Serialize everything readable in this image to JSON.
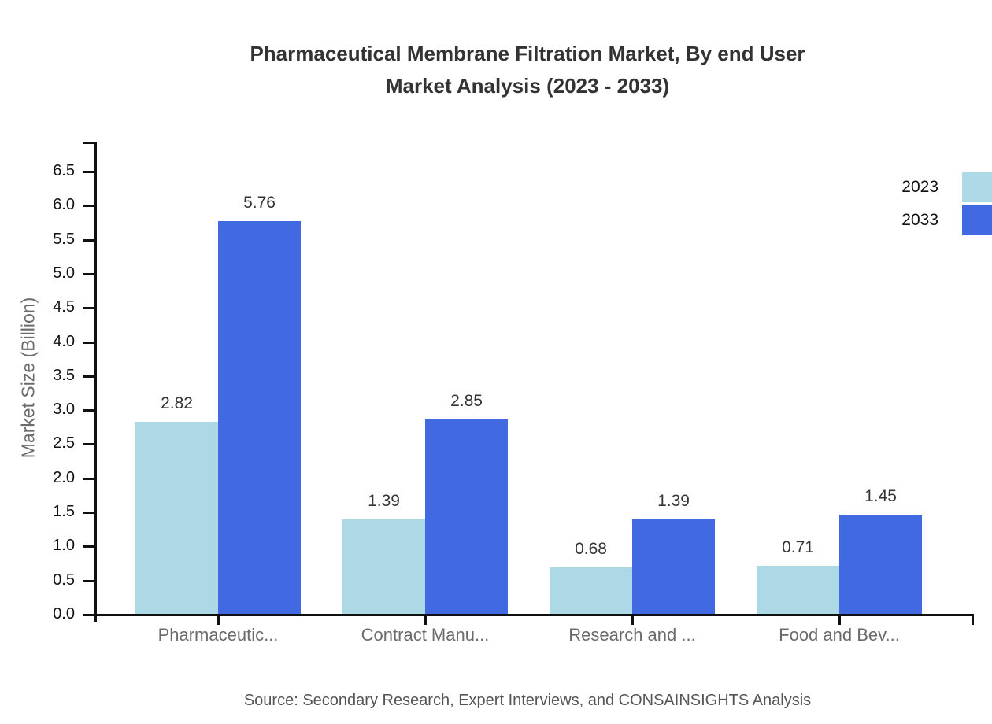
{
  "title": {
    "line1": "Pharmaceutical Membrane Filtration Market, By end User",
    "line2": "Market Analysis (2023 - 2033)"
  },
  "source_note": "Source: Secondary Research, Expert Interviews, and CONSAINSIGHTS Analysis",
  "colors": {
    "series_2023": "#ADD8E6",
    "series_2033": "#4169E1",
    "axis": "#111111",
    "title_text": "#333333",
    "category_text": "#6b6b6b",
    "value_label_text": "#333333",
    "source_text": "#555555"
  },
  "chart_data": {
    "type": "bar",
    "title": "Pharmaceutical Membrane Filtration Market, By end User Market Analysis (2023 - 2033)",
    "xlabel": "",
    "ylabel": "Market Size (Billion)",
    "categories": [
      "Pharmaceutic...",
      "Contract Manu...",
      "Research and ...",
      "Food and Bev..."
    ],
    "series": [
      {
        "name": "2023",
        "color": "#ADD8E6",
        "values": [
          2.82,
          1.39,
          0.68,
          0.71
        ]
      },
      {
        "name": "2033",
        "color": "#4169E1",
        "values": [
          5.76,
          2.85,
          1.39,
          1.45
        ]
      }
    ],
    "ylim": [
      0,
      6.5
    ],
    "yticks": [
      0.0,
      0.5,
      1.0,
      1.5,
      2.0,
      2.5,
      3.0,
      3.5,
      4.0,
      4.5,
      5.0,
      5.5,
      6.0,
      6.5
    ],
    "grid": false,
    "legend_position": "top-right",
    "value_labels_shown": true
  }
}
